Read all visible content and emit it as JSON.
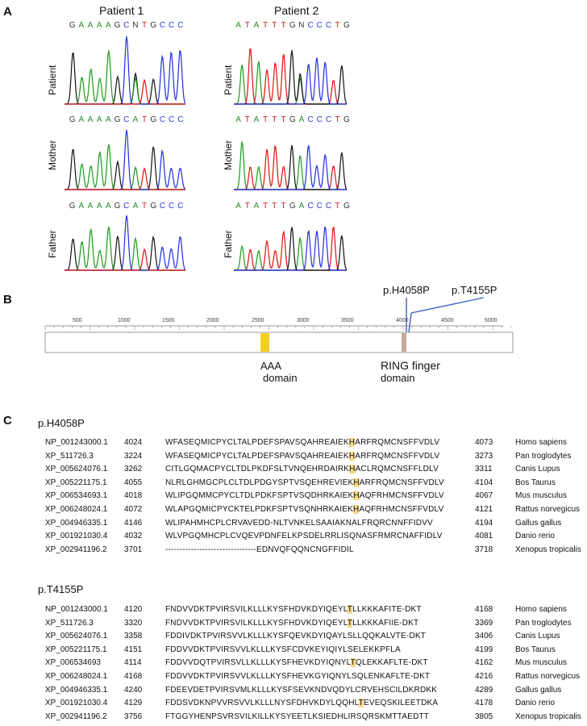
{
  "panelA": {
    "letter": "A",
    "patient1_title": "Patient 1",
    "patient2_title": "Patient 2",
    "row_labels": [
      "Patient",
      "Mother",
      "Father"
    ],
    "sequences": {
      "p1": [
        [
          [
            "G",
            "#333"
          ],
          [
            "A",
            "#2a8a2a"
          ],
          [
            "A",
            "#2a8a2a"
          ],
          [
            "A",
            "#2a8a2a"
          ],
          [
            "A",
            "#2a8a2a"
          ],
          [
            "G",
            "#333"
          ],
          [
            "C",
            "#2a3ad0"
          ],
          [
            "N",
            "#333"
          ],
          [
            "T",
            "#d02020"
          ],
          [
            "G",
            "#333"
          ],
          [
            "C",
            "#2a3ad0"
          ],
          [
            "C",
            "#2a3ad0"
          ],
          [
            "C",
            "#2a3ad0"
          ]
        ],
        [
          [
            "G",
            "#333"
          ],
          [
            "A",
            "#2a8a2a"
          ],
          [
            "A",
            "#2a8a2a"
          ],
          [
            "A",
            "#2a8a2a"
          ],
          [
            "A",
            "#2a8a2a"
          ],
          [
            "G",
            "#333"
          ],
          [
            "C",
            "#2a3ad0"
          ],
          [
            "A",
            "#2a8a2a"
          ],
          [
            "T",
            "#d02020"
          ],
          [
            "G",
            "#333"
          ],
          [
            "C",
            "#2a3ad0"
          ],
          [
            "C",
            "#2a3ad0"
          ],
          [
            "C",
            "#2a3ad0"
          ]
        ],
        [
          [
            "G",
            "#333"
          ],
          [
            "A",
            "#2a8a2a"
          ],
          [
            "A",
            "#2a8a2a"
          ],
          [
            "A",
            "#2a8a2a"
          ],
          [
            "A",
            "#2a8a2a"
          ],
          [
            "G",
            "#333"
          ],
          [
            "C",
            "#2a3ad0"
          ],
          [
            "A",
            "#2a8a2a"
          ],
          [
            "T",
            "#d02020"
          ],
          [
            "G",
            "#333"
          ],
          [
            "C",
            "#2a3ad0"
          ],
          [
            "C",
            "#2a3ad0"
          ],
          [
            "C",
            "#2a3ad0"
          ]
        ]
      ],
      "p2": [
        [
          [
            "A",
            "#2a8a2a"
          ],
          [
            "T",
            "#d02020"
          ],
          [
            "A",
            "#2a8a2a"
          ],
          [
            "T",
            "#d02020"
          ],
          [
            "T",
            "#d02020"
          ],
          [
            "T",
            "#d02020"
          ],
          [
            "G",
            "#333"
          ],
          [
            "N",
            "#333"
          ],
          [
            "C",
            "#2a3ad0"
          ],
          [
            "C",
            "#2a3ad0"
          ],
          [
            "C",
            "#2a3ad0"
          ],
          [
            "T",
            "#d02020"
          ],
          [
            "G",
            "#333"
          ]
        ],
        [
          [
            "A",
            "#2a8a2a"
          ],
          [
            "T",
            "#d02020"
          ],
          [
            "A",
            "#2a8a2a"
          ],
          [
            "T",
            "#d02020"
          ],
          [
            "T",
            "#d02020"
          ],
          [
            "T",
            "#d02020"
          ],
          [
            "G",
            "#333"
          ],
          [
            "A",
            "#2a8a2a"
          ],
          [
            "C",
            "#2a3ad0"
          ],
          [
            "C",
            "#2a3ad0"
          ],
          [
            "C",
            "#2a3ad0"
          ],
          [
            "T",
            "#d02020"
          ],
          [
            "G",
            "#333"
          ]
        ],
        [
          [
            "A",
            "#2a8a2a"
          ],
          [
            "T",
            "#d02020"
          ],
          [
            "A",
            "#2a8a2a"
          ],
          [
            "T",
            "#d02020"
          ],
          [
            "T",
            "#d02020"
          ],
          [
            "T",
            "#d02020"
          ],
          [
            "G",
            "#333"
          ],
          [
            "A",
            "#2a8a2a"
          ],
          [
            "C",
            "#2a3ad0"
          ],
          [
            "C",
            "#2a3ad0"
          ],
          [
            "C",
            "#2a3ad0"
          ],
          [
            "T",
            "#d02020"
          ],
          [
            "G",
            "#333"
          ]
        ]
      ]
    }
  },
  "panelB": {
    "letter": "B",
    "ticks": [
      "500",
      "1000",
      "1500",
      "2000",
      "2500",
      "3000",
      "3500",
      "4000",
      "4500",
      "5000"
    ],
    "mut1": "p.H4058P",
    "mut2": "p.T4155P",
    "aaa_label_1": "AAA",
    "aaa_label_2": "domain",
    "ring_label_1": "RING finger",
    "ring_label_2": "domain"
  },
  "panelC": {
    "letter": "C",
    "block1_title": "p.H4058P",
    "block2_title": "p.T4155P",
    "block1": [
      {
        "acc": "NP_001243000.1",
        "start": "4024",
        "pre": "WFASEQMICPYCLTALPDEFSPAVSQAHREAIEK",
        "hl": "H",
        "post": "ARFRQMCNSFFVDLV",
        "end": "4073",
        "sp": "Homo sapiens"
      },
      {
        "acc": "XP_511726.3",
        "start": "3224",
        "pre": "WFASEQMICPYCLTALPDEFSPAVSQAHREAIEK",
        "hl": "H",
        "post": "ARFRQMCNSFFVDLV",
        "end": "3273",
        "sp": "Pan troglodytes"
      },
      {
        "acc": "XP_005624076.1",
        "start": "3262",
        "pre": "CITLGQMACPYCLTDLPKDFSLTVNQEHRDAIRK",
        "hl": "H",
        "post": "ACLRQMCNSFFLDLV",
        "end": "3311",
        "sp": "Canis Lupus"
      },
      {
        "acc": "XP_005221175.1",
        "start": "4055",
        "pre": "NLRLGHMGCPLCLTDLPDGYSPTVSQEHREVIEK",
        "hl": "H",
        "post": "ARFRQMCNSFFVDLV",
        "end": "4104",
        "sp": "Bos Taurus"
      },
      {
        "acc": "XP_006534693.1",
        "start": "4018",
        "pre": "WLIPGQMMCPYCLTDLPDKFSPTVSQDHRKAIEK",
        "hl": "H",
        "post": "AQFRHMCNSFFVDLV",
        "end": "4067",
        "sp": "Mus musculus"
      },
      {
        "acc": "XP_006248024.1",
        "start": "4072",
        "pre": "WLAPGQMICPYCKTELPDKFSPTVSQNHRKAIEK",
        "hl": "H",
        "post": "AQFRHMCNSFFVDLV",
        "end": "4121",
        "sp": "Rattus norvegicus"
      },
      {
        "acc": "XP_004946335.1",
        "start": "4146",
        "pre": "WLIPAHMHCPLCRVAVEDD-NLTVNKELSAAIAKNALFRQRCNNFFIDVV",
        "hl": "",
        "post": "",
        "end": "4194",
        "sp": "Gallus gallus"
      },
      {
        "acc": "XP_001921030.4",
        "start": "4032",
        "pre": "WLVPGQMHCPLCVQEVPDNFELKPSDELRRLISQNASFRMRCNAFFIDLV",
        "hl": "",
        "post": "",
        "end": "4081",
        "sp": "Danio rerio"
      },
      {
        "acc": "XP_002941196.2",
        "start": "3701",
        "pre": "--------------------------------EDNVQFQQNCNGFFIDIL",
        "hl": "",
        "post": "",
        "end": "3718",
        "sp": "Xenopus tropicalis"
      }
    ],
    "block2": [
      {
        "acc": "NP_001243000.1",
        "start": "4120",
        "pre": "FNDVVDKTPVIRSVILKLLLKYSFHDVKDYIQEYL",
        "hl": "T",
        "post": "LLKKKAFITE-DKT",
        "end": "4168",
        "sp": "Homo sapiens"
      },
      {
        "acc": "XP_511726.3",
        "start": "3320",
        "pre": "FNDVVDKTPVIRSVILKLLLKYSFHDVKDYIQEYL",
        "hl": "T",
        "post": "LLKKKAFIIE-DKT",
        "end": "3369",
        "sp": "Pan troglodytes"
      },
      {
        "acc": "XP_005624076.1",
        "start": "3358",
        "pre": "FDDIVDKTPVIRSVVLKLLLKYSFQEVKDYIQAYLSLLQQKALVTE-DKT",
        "hl": "",
        "post": "",
        "end": "3406",
        "sp": "Canis Lupus"
      },
      {
        "acc": "XP_005221175.1",
        "start": "4151",
        "pre": "FDDVVDKTPVIRSVVLKLLLKYSFCDVKEYIQIYLSELEKKPFLA",
        "hl": "",
        "post": "",
        "end": "4199",
        "sp": "Bos Taurus"
      },
      {
        "acc": "XP_006534693",
        "start": "4114",
        "pre": "FDDVVDQTPVIRSVLLKLLLKYSFHEVKDYIQNYL",
        "hl": "T",
        "post": "QLEKKAFLTE-DKT",
        "end": "4162",
        "sp": "Mus musculus"
      },
      {
        "acc": "XP_006248024.1",
        "start": "4168",
        "pre": "FDDVVDKTPVIRSVVLKLLLKYSFHEVKGYIQNYLSQLENKAFLTE-DKT",
        "hl": "",
        "post": "",
        "end": "4216",
        "sp": "Rattus norvegicus"
      },
      {
        "acc": "XP_004946335.1",
        "start": "4240",
        "pre": "FDEEVDETPVIRSVMLKLLLKYSFSEVKNDVQDYLCRVEHSCILDKRDKK",
        "hl": "",
        "post": "",
        "end": "4289",
        "sp": "Gallus gallus"
      },
      {
        "acc": "XP_001921030.4",
        "start": "4129",
        "pre": "FDDSVDKNPVVRSVVLKLLLNYSFDHVKDYLQQHL",
        "hl": "T",
        "post": "EVEQSKILEETDKA",
        "end": "4178",
        "sp": "Danio rerio"
      },
      {
        "acc": "XP_002941196.2",
        "start": "3756",
        "pre": "FTGGYHENPSVRSVILKILLKYSYEETLKSIEDHLIRSQRSKMTTAEDTT",
        "hl": "",
        "post": "",
        "end": "3805",
        "sp": "Xenopus tropicalis"
      }
    ]
  }
}
